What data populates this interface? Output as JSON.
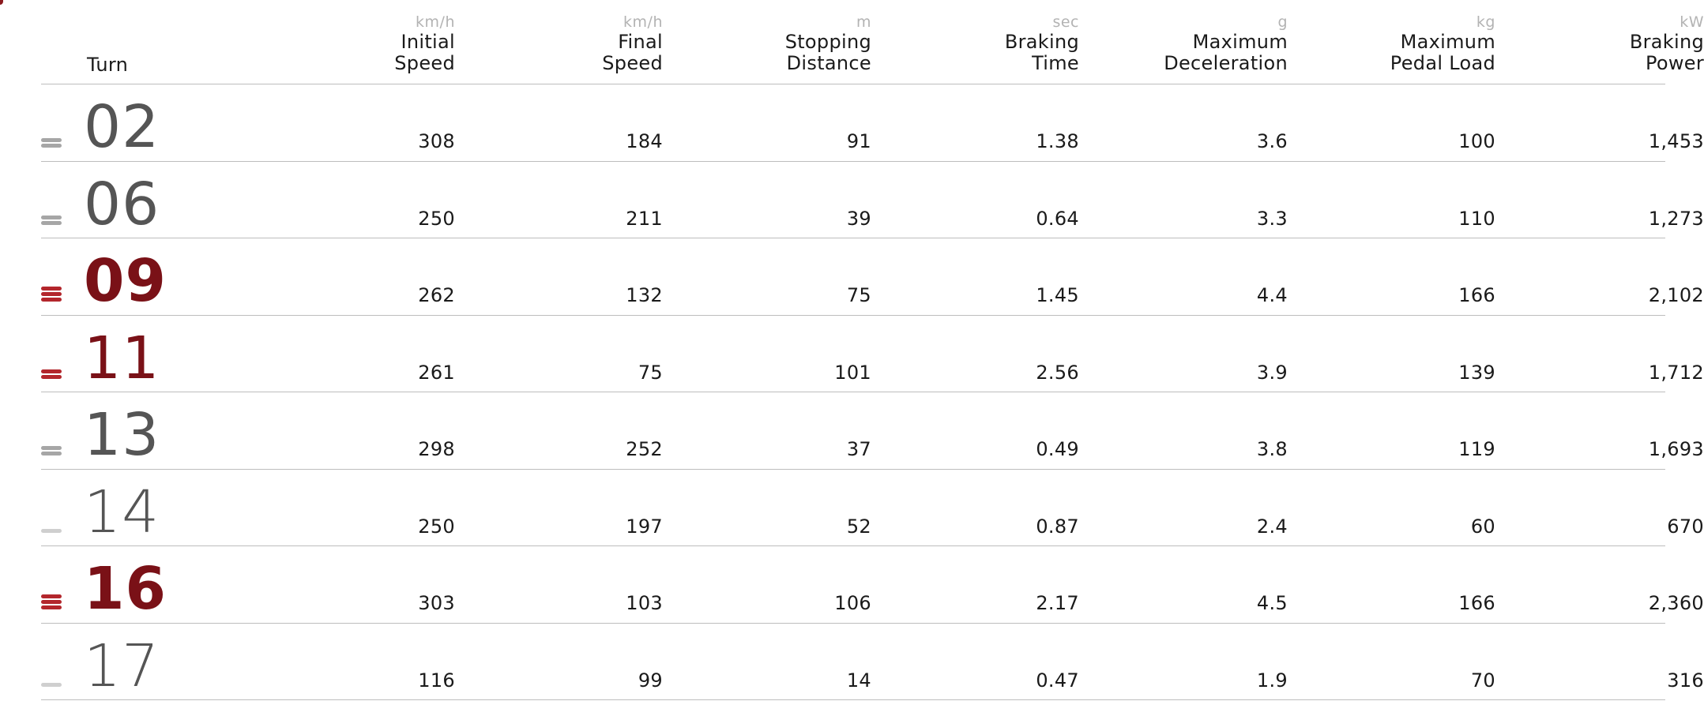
{
  "header": {
    "turn_label": "Turn",
    "columns": [
      {
        "unit": "km/h",
        "title": "Initial\nSpeed"
      },
      {
        "unit": "km/h",
        "title": "Final\nSpeed"
      },
      {
        "unit": "m",
        "title": "Stopping\nDistance"
      },
      {
        "unit": "sec",
        "title": "Braking\nTime"
      },
      {
        "unit": "g",
        "title": "Maximum\nDeceleration"
      },
      {
        "unit": "kg",
        "title": "Maximum\nPedal Load"
      },
      {
        "unit": "kW",
        "title": "Braking\nPower"
      }
    ]
  },
  "colors": {
    "high": "#7a1117",
    "icon_high": "#b3262c",
    "icon_medium": "#a6a6a6",
    "icon_low": "#cfcfcf",
    "turn_grey": "#555555",
    "divider": "#bdbdbd"
  },
  "rows": [
    {
      "turn": "02",
      "severity": "medium",
      "icon_bars": 2,
      "values": [
        "308",
        "184",
        "91",
        "1.38",
        "3.6",
        "100",
        "1,453"
      ]
    },
    {
      "turn": "06",
      "severity": "medium",
      "icon_bars": 2,
      "values": [
        "250",
        "211",
        "39",
        "0.64",
        "3.3",
        "110",
        "1,273"
      ]
    },
    {
      "turn": "09",
      "severity": "high",
      "icon_bars": 3,
      "values": [
        "262",
        "132",
        "75",
        "1.45",
        "4.4",
        "166",
        "2,102"
      ]
    },
    {
      "turn": "11",
      "severity": "high-medium",
      "icon_bars": 2,
      "values": [
        "261",
        "75",
        "101",
        "2.56",
        "3.9",
        "139",
        "1,712"
      ]
    },
    {
      "turn": "13",
      "severity": "medium",
      "icon_bars": 2,
      "values": [
        "298",
        "252",
        "37",
        "0.49",
        "3.8",
        "119",
        "1,693"
      ]
    },
    {
      "turn": "14",
      "severity": "low",
      "icon_bars": 1,
      "values": [
        "250",
        "197",
        "52",
        "0.87",
        "2.4",
        "60",
        "670"
      ]
    },
    {
      "turn": "16",
      "severity": "high",
      "icon_bars": 3,
      "values": [
        "303",
        "103",
        "106",
        "2.17",
        "4.5",
        "166",
        "2,360"
      ]
    },
    {
      "turn": "17",
      "severity": "low",
      "icon_bars": 1,
      "values": [
        "116",
        "99",
        "14",
        "0.47",
        "1.9",
        "70",
        "316"
      ]
    }
  ]
}
